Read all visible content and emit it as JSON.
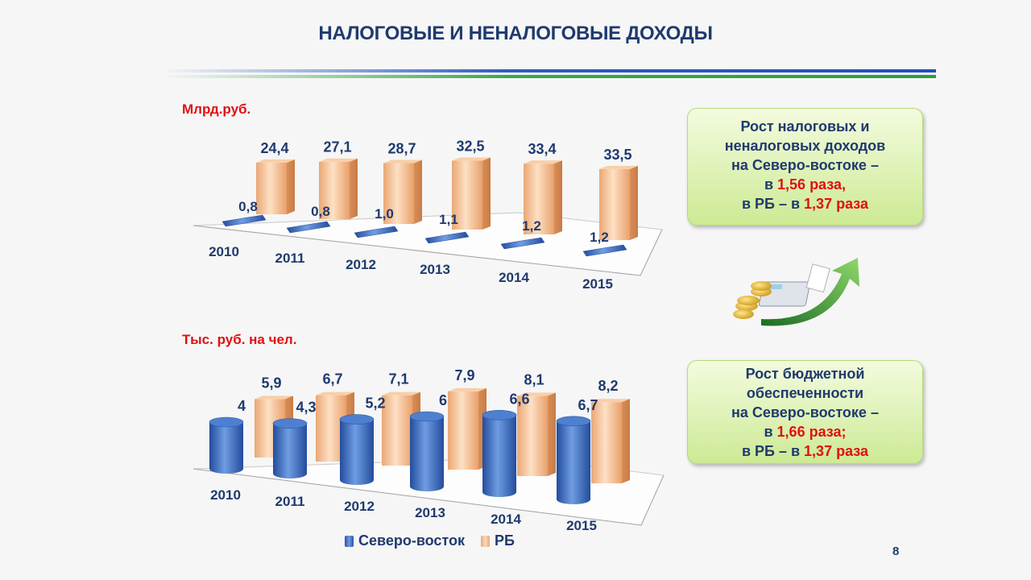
{
  "slide": {
    "title": "НАЛОГОВЫЕ И НЕНАЛОГОВЫЕ ДОХОДЫ",
    "page_number": "8"
  },
  "box1": {
    "line1": "Рост налоговых и",
    "line2": "неналоговых доходов",
    "line3": "на Северо-востоке –",
    "line4_pre": "в ",
    "line4_val": "1,56 раза",
    "line4_post": ",",
    "line5_pre": "в РБ – в ",
    "line5_val": "1,37 раза"
  },
  "box2": {
    "line1": "Рост  бюджетной",
    "line2": "обеспеченности",
    "line3": "на Северо-востоке –",
    "line4_pre": "в ",
    "line4_val": "1,66 раза",
    "line4_post": ";",
    "line5_pre": "в РБ – в ",
    "line5_val": "1,37 раза"
  },
  "legend": {
    "series1": "Северо-восток",
    "series2": "РБ"
  },
  "colors": {
    "title": "#1f3a6e",
    "red": "#e01010",
    "blue_series": "#3b6fc9",
    "orange_series": "#f5c49a"
  },
  "chart_data": [
    {
      "type": "bar",
      "unit_label": "Млрд.руб.",
      "categories": [
        "2010",
        "2011",
        "2012",
        "2013",
        "2014",
        "2015"
      ],
      "series": [
        {
          "name": "Северо-восток",
          "values": [
            0.8,
            0.8,
            1.0,
            1.1,
            1.2,
            1.2
          ],
          "labels": [
            "0,8",
            "0,8",
            "1,0",
            "1,1",
            "1,2",
            "1,2"
          ]
        },
        {
          "name": "РБ",
          "values": [
            24.4,
            27.1,
            28.7,
            32.5,
            33.4,
            33.5
          ],
          "labels": [
            "24,4",
            "27,1",
            "28,7",
            "32,5",
            "33,4",
            "33,5"
          ]
        }
      ]
    },
    {
      "type": "bar",
      "unit_label": "Тыс. руб. на чел.",
      "categories": [
        "2010",
        "2011",
        "2012",
        "2013",
        "2014",
        "2015"
      ],
      "series": [
        {
          "name": "Северо-восток",
          "values": [
            4,
            4.3,
            5.2,
            6,
            6.6,
            6.7
          ],
          "labels": [
            "4",
            "4,3",
            "5,2",
            "6",
            "6,6",
            "6,7"
          ]
        },
        {
          "name": "РБ",
          "values": [
            5.9,
            6.7,
            7.1,
            7.9,
            8.1,
            8.2
          ],
          "labels": [
            "5,9",
            "6,7",
            "7,1",
            "7,9",
            "8,1",
            "8,2"
          ]
        }
      ]
    }
  ]
}
